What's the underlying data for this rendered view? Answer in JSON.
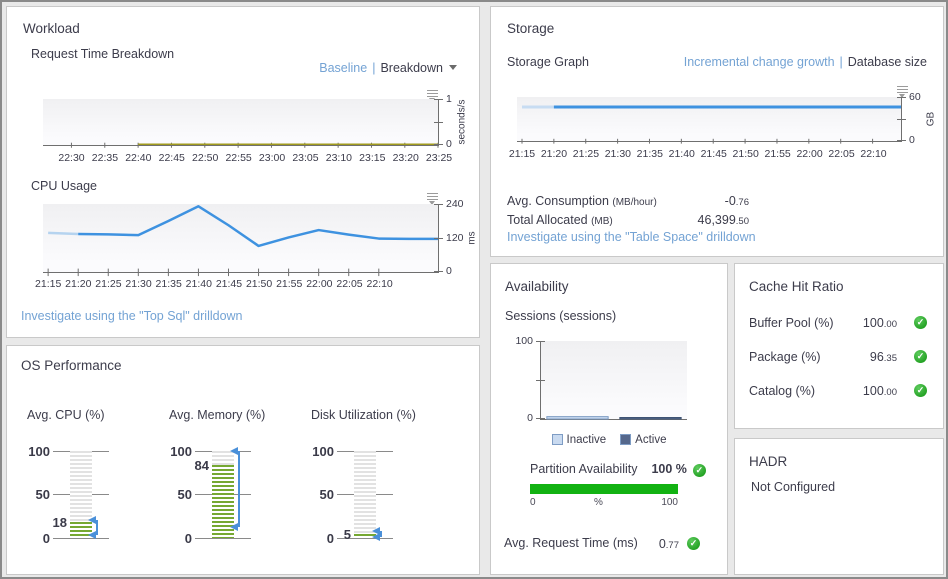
{
  "workload": {
    "title": "Workload",
    "chart1_label": "Request Time Breakdown",
    "toggle": {
      "link": "Baseline",
      "sep": "|",
      "active": "Breakdown"
    },
    "chart2_label": "CPU Usage",
    "investigate_link": "Investigate using the \"Top Sql\" drilldown"
  },
  "storage": {
    "title": "Storage",
    "chart_label": "Storage Graph",
    "toggle": {
      "link": "Incremental change growth",
      "sep": "|",
      "active": "Database size"
    },
    "stats": [
      {
        "label": "Avg. Consumption ",
        "unit": "(MB/hour)",
        "value_int": "-0",
        "value_dec": ".76"
      },
      {
        "label": "Total Allocated ",
        "unit": "(MB)",
        "value_int": "46,399",
        "value_dec": ".50"
      }
    ],
    "investigate_link": "Investigate using the \"Table Space\" drilldown"
  },
  "availability": {
    "title": "Availability",
    "sessions_label": "Sessions (sessions)",
    "legend": [
      {
        "label": "Inactive",
        "color": "#c9daf0",
        "border": "#7e9cc4"
      },
      {
        "label": "Active",
        "color": "#55688c",
        "border": "#3f5474"
      }
    ],
    "partition": {
      "label": "Partition Availability",
      "value": "100 %",
      "bar_pct": "100%",
      "bar_color": "#12b212",
      "scale": [
        "0",
        "%",
        "100"
      ]
    },
    "request_time": {
      "label": "Avg. Request Time (ms)",
      "value_int": "0",
      "value_dec": ".77"
    }
  },
  "cache": {
    "title": "Cache Hit Ratio",
    "rows": [
      {
        "label": "Buffer Pool (%)",
        "value_int": "100",
        "value_dec": ".00"
      },
      {
        "label": "Package (%)",
        "value_int": "96",
        "value_dec": ".35"
      },
      {
        "label": "Catalog (%)",
        "value_int": "100",
        "value_dec": ".00"
      }
    ]
  },
  "hadr": {
    "title": "HADR",
    "status": "Not Configured"
  },
  "os": {
    "title": "OS Performance",
    "gauges": [
      {
        "label": "Avg. CPU (%)",
        "value": 18,
        "ticks": [
          "100",
          "50",
          "0"
        ],
        "marker_high": 21,
        "marker_low": 3
      },
      {
        "label": "Avg. Memory (%)",
        "value": 84,
        "ticks": [
          "100",
          "50",
          "0"
        ],
        "marker_high": 100,
        "marker_low": 13
      },
      {
        "label": "Disk Utilization (%)",
        "value": 5,
        "ticks": [
          "100",
          "50",
          "0"
        ],
        "marker_high": 8,
        "marker_low": 1
      }
    ]
  },
  "chart_data": [
    {
      "id": "request-time",
      "type": "line",
      "title": "Request Time Breakdown",
      "ylabel": "seconds/s",
      "ylim": [
        0,
        1
      ],
      "yticks": [
        "1",
        "",
        "0"
      ],
      "x_start_pct": 7.2,
      "x_step_pct": 8.44,
      "x": [
        "22:30",
        "22:35",
        "22:40",
        "22:45",
        "22:50",
        "22:55",
        "23:00",
        "23:05",
        "23:10",
        "23:15",
        "23:20",
        "23:25"
      ],
      "series": [
        {
          "name": "request time",
          "color": "#a19b1e",
          "width": 1.5,
          "values": [
            null,
            null,
            0.015,
            0.015,
            0.015,
            0.015,
            0.015,
            0.015,
            0.015,
            0.015,
            0.015,
            0.015
          ]
        }
      ]
    },
    {
      "id": "cpu-usage",
      "type": "line",
      "title": "CPU Usage",
      "ylabel": "ms",
      "ylim": [
        0,
        240
      ],
      "yticks": [
        "240",
        "120",
        "0"
      ],
      "x_start_pct": 1.3,
      "x_step_pct": 7.61,
      "x": [
        "21:15",
        "21:20",
        "21:25",
        "21:30",
        "21:35",
        "21:40",
        "21:45",
        "21:50",
        "21:55",
        "22:00",
        "22:05",
        "22:10"
      ],
      "series": [
        {
          "name": "cpu time",
          "color": "#3e92e0",
          "light_color": "#b5d3ef",
          "width": 2.5,
          "values": [
            138,
            134,
            133,
            130,
            180,
            232,
            165,
            92,
            122,
            148,
            132,
            118,
            117,
            117
          ]
        }
      ]
    },
    {
      "id": "storage-graph",
      "type": "line",
      "title": "Storage Graph",
      "ylabel": "GB",
      "ylim": [
        0,
        60
      ],
      "yticks": [
        "60",
        "",
        "0"
      ],
      "x_start_pct": 1.3,
      "x_step_pct": 8.3,
      "x": [
        "21:15",
        "21:20",
        "21:25",
        "21:30",
        "21:35",
        "21:40",
        "21:45",
        "21:50",
        "21:55",
        "22:00",
        "22:05",
        "22:10"
      ],
      "series": [
        {
          "name": "database size",
          "color": "#3e92e0",
          "light_color": "#c7dcf2",
          "width": 3,
          "values": [
            46.4,
            46.4,
            46.4,
            46.4,
            46.4,
            46.4,
            46.4,
            46.4,
            46.4,
            46.4,
            46.4,
            46.4,
            46.4
          ]
        }
      ]
    },
    {
      "id": "sessions",
      "type": "bar",
      "title": "Sessions (sessions)",
      "ylim": [
        0,
        100
      ],
      "yticks": [
        "100",
        "",
        "0"
      ],
      "categories": [
        "Inactive",
        "Active"
      ],
      "values": [
        3,
        2
      ],
      "colors": [
        "#c9daf0",
        "#55688c"
      ],
      "strokes": [
        "#7e9cc4",
        "#3f5474"
      ],
      "bars": [
        {
          "x": 4,
          "w": 42
        },
        {
          "x": 54,
          "w": 42
        }
      ]
    }
  ]
}
